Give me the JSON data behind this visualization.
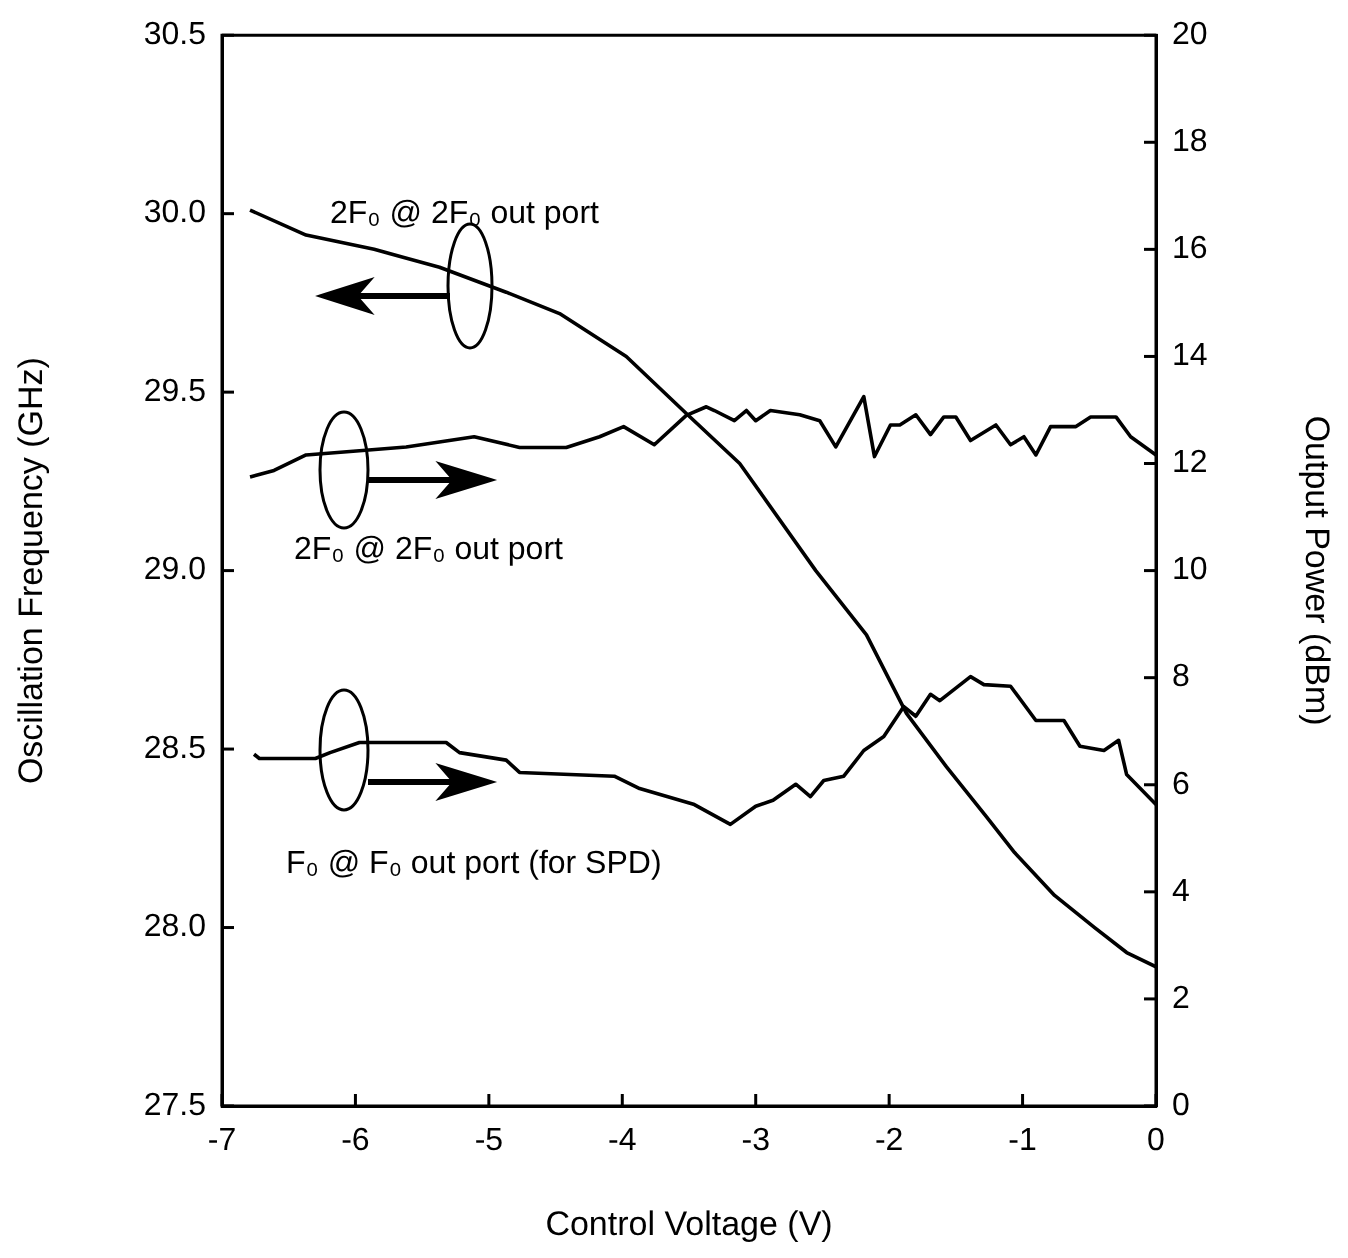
{
  "chart_data": {
    "type": "line",
    "xlabel": "Control Voltage (V)",
    "ylabel": "Oscillation Frequency (GHz)",
    "y2label": "Output Power (dBm)",
    "xlim": [
      -7,
      0
    ],
    "xticks": [
      -7,
      -6,
      -5,
      -4,
      -3,
      -2,
      -1,
      0
    ],
    "ylim": [
      27.5,
      30.5
    ],
    "yticks": [
      27.5,
      {
        "value": 28,
        "label": "28.0"
      },
      28.5,
      {
        "value": 29,
        "label": "29.0"
      },
      29.5,
      {
        "value": 30,
        "label": "30.0"
      },
      30.5
    ],
    "y2lim": [
      0,
      20
    ],
    "y2ticks": [
      0,
      2,
      4,
      6,
      8,
      10,
      12,
      14,
      16,
      18,
      20
    ],
    "grid": false,
    "legend": "left",
    "marker": "none",
    "line_style": "solid",
    "series": [
      {
        "name": "2F₀ @ 2F₀ out port",
        "color": "#000000",
        "axis": "y",
        "x": [
          -6.79,
          -6.37,
          -5.86,
          -5.37,
          -4.87,
          -4.47,
          -3.97,
          -3.52,
          -3.12,
          -2.55,
          -2.17,
          -1.87,
          -1.57,
          -1.27,
          -1.06,
          -0.76,
          -0.46,
          -0.22,
          0
        ],
        "values": [
          30.01,
          29.94,
          29.9,
          29.85,
          29.78,
          29.72,
          29.6,
          29.44,
          29.3,
          29.0,
          28.82,
          28.6,
          28.45,
          28.31,
          28.21,
          28.09,
          28.0,
          27.93,
          27.89
        ]
      },
      {
        "name": "2F₀ @ 2F₀ out port",
        "color": "#000000",
        "axis": "y2",
        "x": [
          -6.79,
          -6.61,
          -6.37,
          -5.97,
          -5.62,
          -5.11,
          -4.77,
          -4.42,
          -4.17,
          -3.99,
          -3.76,
          -3.52,
          -3.37,
          -3.31,
          -3.16,
          -3.07,
          -3.0,
          -2.89,
          -2.67,
          -2.52,
          -2.4,
          -2.19,
          -2.11,
          -1.99,
          -1.92,
          -1.8,
          -1.69,
          -1.59,
          -1.5,
          -1.39,
          -1.2,
          -1.09,
          -0.99,
          -0.9,
          -0.79,
          -0.6,
          -0.49,
          -0.3,
          -0.19,
          0
        ],
        "values": [
          11.75,
          11.87,
          12.16,
          12.24,
          12.31,
          12.5,
          12.3,
          12.3,
          12.5,
          12.69,
          12.35,
          12.9,
          13.06,
          12.99,
          12.8,
          12.99,
          12.8,
          12.99,
          12.91,
          12.8,
          12.31,
          13.25,
          12.13,
          12.72,
          12.72,
          12.91,
          12.54,
          12.87,
          12.87,
          12.43,
          12.72,
          12.35,
          12.5,
          12.16,
          12.69,
          12.69,
          12.87,
          12.87,
          12.5,
          12.16
        ]
      },
      {
        "name": "F₀ @ F₀ out port (for SPD)",
        "color": "#000000",
        "axis": "y2",
        "x": [
          -6.76,
          -6.72,
          -6.3,
          -6.19,
          -5.97,
          -5.32,
          -5.22,
          -4.87,
          -4.77,
          -4.06,
          -3.87,
          -3.46,
          -3.19,
          -3.0,
          -2.87,
          -2.7,
          -2.59,
          -2.49,
          -2.34,
          -2.19,
          -2.04,
          -1.89,
          -1.8,
          -1.69,
          -1.62,
          -1.39,
          -1.29,
          -1.09,
          -0.9,
          -0.69,
          -0.57,
          -0.39,
          -0.28,
          -0.22,
          0
        ],
        "values": [
          6.57,
          6.49,
          6.49,
          6.6,
          6.79,
          6.79,
          6.6,
          6.46,
          6.23,
          6.16,
          5.93,
          5.63,
          5.26,
          5.6,
          5.71,
          6.01,
          5.78,
          6.08,
          6.16,
          6.64,
          6.9,
          7.46,
          7.28,
          7.69,
          7.57,
          8.02,
          7.87,
          7.84,
          7.2,
          7.2,
          6.72,
          6.64,
          6.83,
          6.19,
          5.63
        ]
      }
    ]
  }
}
